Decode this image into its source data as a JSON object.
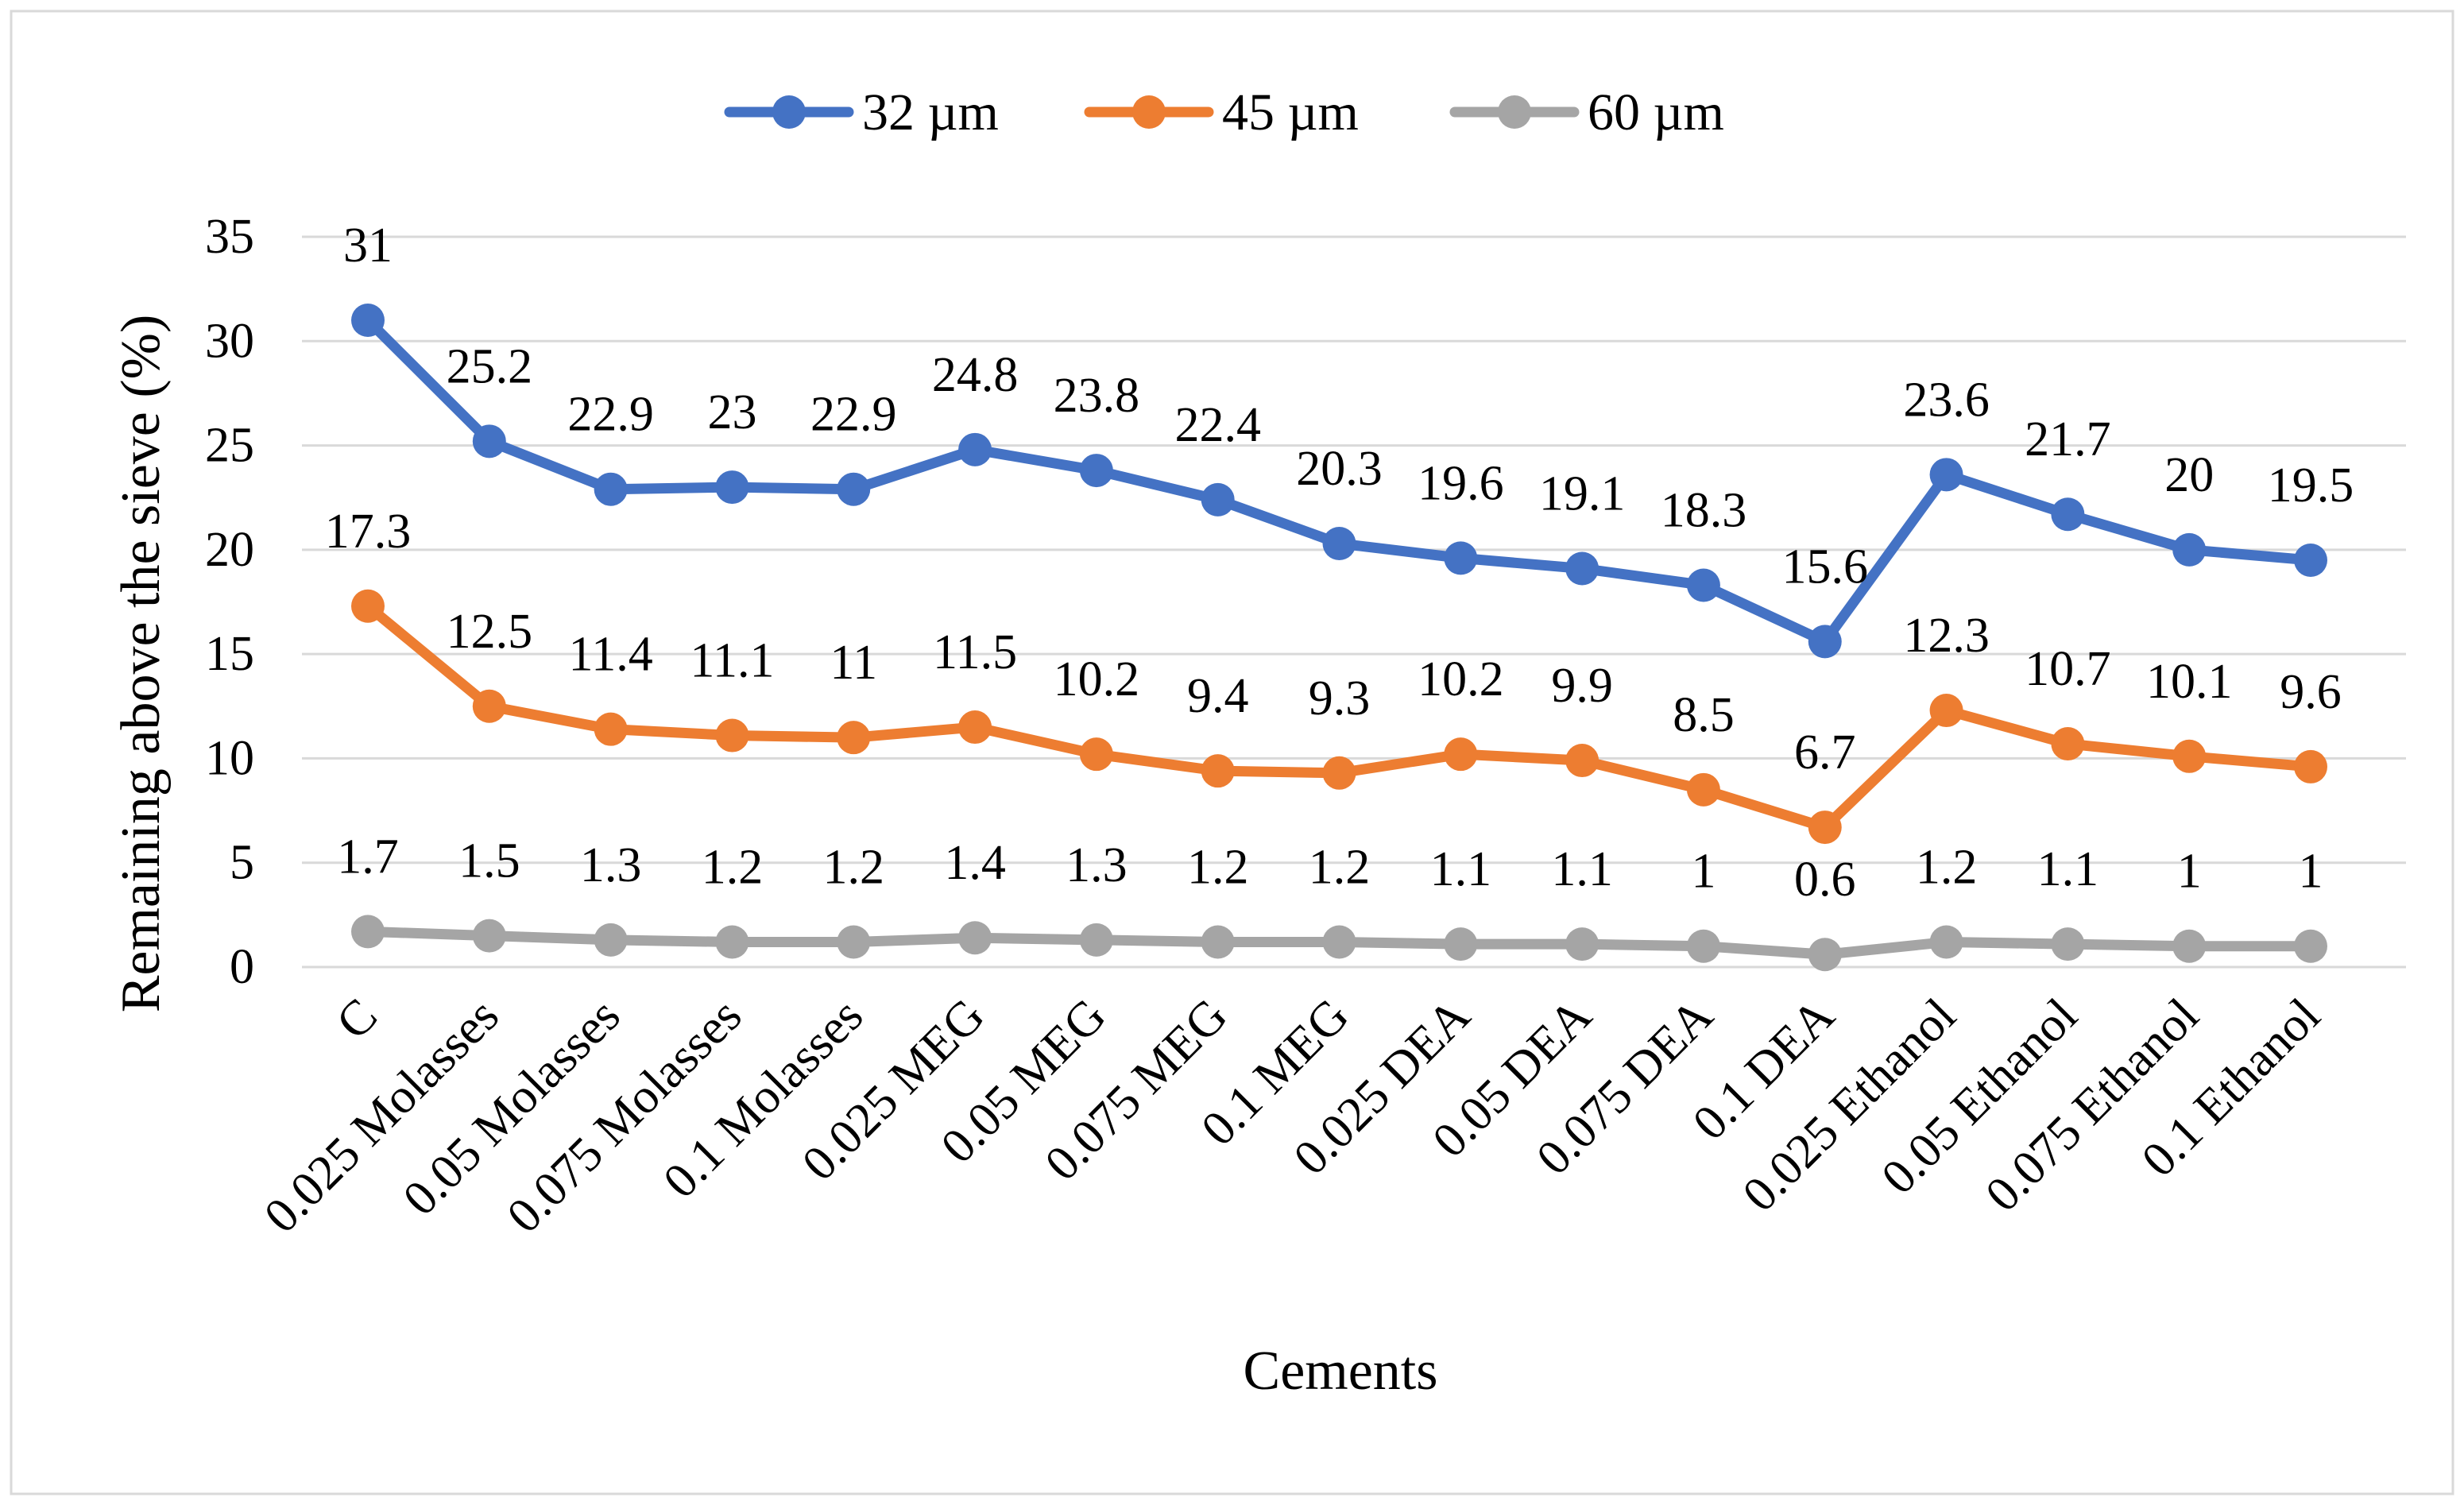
{
  "chart_data": {
    "type": "line",
    "title": "",
    "xlabel": "Cements",
    "ylabel": "Remaining above the sieve (%)",
    "ylim": [
      0,
      35
    ],
    "yticks": [
      0,
      5,
      10,
      15,
      20,
      25,
      30,
      35
    ],
    "grid": true,
    "legend_position": "top",
    "categories": [
      "C",
      "0.025 Molasses",
      "0.05 Molasses",
      "0.075 Molasses",
      "0.1 Molasses",
      "0.025 MEG",
      "0.05 MEG",
      "0.075 MEG",
      "0.1 MEG",
      "0.025 DEA",
      "0.05 DEA",
      "0.075 DEA",
      "0.1 DEA",
      "0.025 Ethanol",
      "0.05 Ethanol",
      "0.075 Ethanol",
      "0.1 Ethanol"
    ],
    "series": [
      {
        "name": "32 µm",
        "color": "#4472c4",
        "values": [
          31,
          25.2,
          22.9,
          23,
          22.9,
          24.8,
          23.8,
          22.4,
          20.3,
          19.6,
          19.1,
          18.3,
          15.6,
          23.6,
          21.7,
          20,
          19.5
        ]
      },
      {
        "name": "45 µm",
        "color": "#ed7d31",
        "values": [
          17.3,
          12.5,
          11.4,
          11.1,
          11,
          11.5,
          10.2,
          9.4,
          9.3,
          10.2,
          9.9,
          8.5,
          6.7,
          12.3,
          10.7,
          10.1,
          9.6
        ]
      },
      {
        "name": "60 µm",
        "color": "#a5a5a5",
        "values": [
          1.7,
          1.5,
          1.3,
          1.2,
          1.2,
          1.4,
          1.3,
          1.2,
          1.2,
          1.1,
          1.1,
          1,
          0.6,
          1.2,
          1.1,
          1,
          1
        ]
      }
    ]
  }
}
